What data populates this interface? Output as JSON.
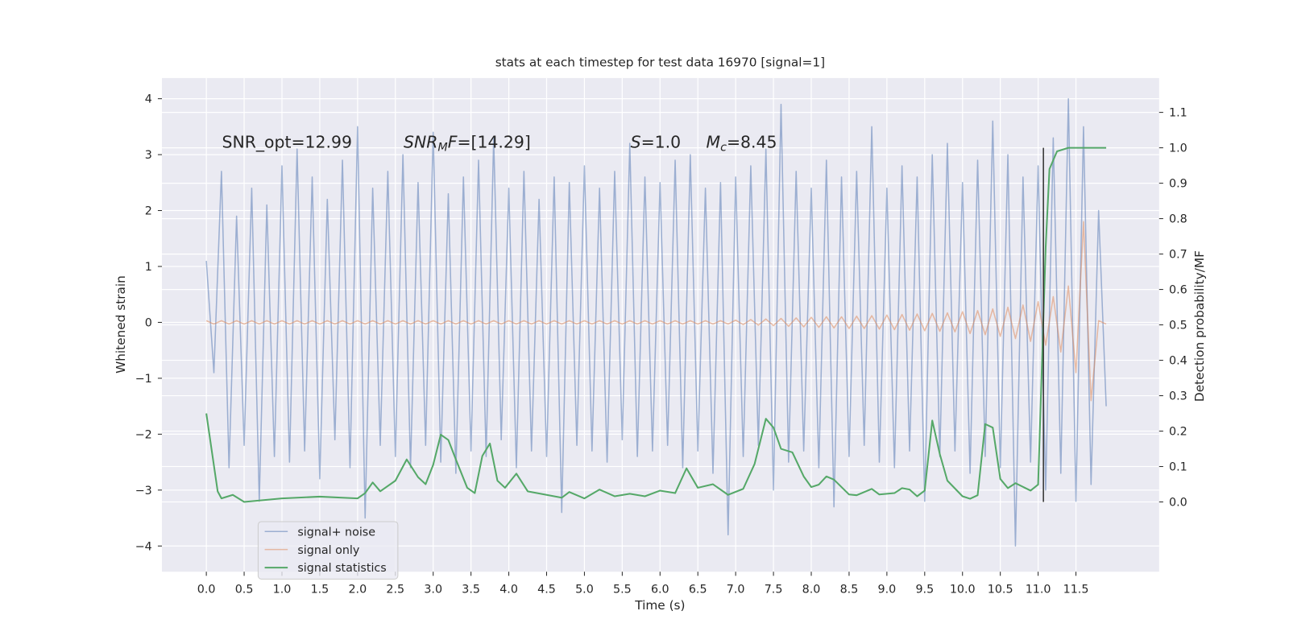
{
  "chart_data": {
    "type": "line",
    "title": "stats at each timestep for test data 16970 [signal=1]",
    "xlabel": "Time (s)",
    "ylabel": "Whitened strain",
    "y2label": "Detection probability/MF",
    "xlim": [
      -0.587,
      12.6
    ],
    "ylim": [
      -4.46,
      4.37
    ],
    "y2lim": [
      -0.197,
      1.197
    ],
    "xticks": [
      {
        "value": 0,
        "label": "0.0"
      },
      {
        "value": 0.5,
        "label": "0.5"
      },
      {
        "value": 1,
        "label": "1.0"
      },
      {
        "value": 1.5,
        "label": "1.5"
      },
      {
        "value": 2,
        "label": "2.0"
      },
      {
        "value": 2.5,
        "label": "2.5"
      },
      {
        "value": 3,
        "label": "3.0"
      },
      {
        "value": 3.5,
        "label": "3.5"
      },
      {
        "value": 4,
        "label": "4.0"
      },
      {
        "value": 4.5,
        "label": "4.5"
      },
      {
        "value": 5,
        "label": "5.0"
      },
      {
        "value": 5.5,
        "label": "5.5"
      },
      {
        "value": 6,
        "label": "6.0"
      },
      {
        "value": 6.5,
        "label": "6.5"
      },
      {
        "value": 7,
        "label": "7.0"
      },
      {
        "value": 7.5,
        "label": "7.5"
      },
      {
        "value": 8,
        "label": "8.0"
      },
      {
        "value": 8.5,
        "label": "8.5"
      },
      {
        "value": 9,
        "label": "9.0"
      },
      {
        "value": 9.5,
        "label": "9.5"
      },
      {
        "value": 10,
        "label": "10.0"
      },
      {
        "value": 10.5,
        "label": "10.5"
      },
      {
        "value": 11,
        "label": "11.0"
      },
      {
        "value": 11.5,
        "label": "11.5"
      }
    ],
    "yticks": [
      {
        "value": -4,
        "label": "−4"
      },
      {
        "value": -3,
        "label": "−3"
      },
      {
        "value": -2,
        "label": "−2"
      },
      {
        "value": -1,
        "label": "−1"
      },
      0,
      1,
      2,
      3,
      4
    ],
    "y2ticks": [
      {
        "value": 0,
        "label": "0.0"
      },
      {
        "value": 0.1,
        "label": "0.1"
      },
      {
        "value": 0.2,
        "label": "0.2"
      },
      {
        "value": 0.3,
        "label": "0.3"
      },
      {
        "value": 0.4,
        "label": "0.4"
      },
      {
        "value": 0.5,
        "label": "0.5"
      },
      {
        "value": 0.6,
        "label": "0.6"
      },
      {
        "value": 0.7,
        "label": "0.7"
      },
      {
        "value": 0.8,
        "label": "0.8"
      },
      {
        "value": 0.9,
        "label": "0.9"
      },
      {
        "value": 1,
        "label": "1.0"
      },
      {
        "value": 1.1,
        "label": "1.1"
      }
    ],
    "grid": true,
    "legend": "lower left",
    "series": [
      {
        "name": "signal+ noise",
        "color": "#4c72b0",
        "alpha": 0.5,
        "x": [
          0,
          0.1,
          0.2,
          0.3,
          0.4,
          0.5,
          0.6,
          0.7,
          0.8,
          0.9,
          1,
          1.1,
          1.2,
          1.3,
          1.4,
          1.5,
          1.6,
          1.7,
          1.8,
          1.9,
          2,
          2.1,
          2.2,
          2.3,
          2.4,
          2.5,
          2.6,
          2.7,
          2.8,
          2.9,
          3,
          3.1,
          3.2,
          3.3,
          3.4,
          3.5,
          3.6,
          3.7,
          3.8,
          3.9,
          4,
          4.1,
          4.2,
          4.3,
          4.4,
          4.5,
          4.6,
          4.7,
          4.8,
          4.9,
          5,
          5.1,
          5.2,
          5.3,
          5.4,
          5.5,
          5.6,
          5.7,
          5.8,
          5.9,
          6,
          6.1,
          6.2,
          6.3,
          6.4,
          6.5,
          6.6,
          6.7,
          6.8,
          6.9,
          7,
          7.1,
          7.2,
          7.3,
          7.4,
          7.5,
          7.6,
          7.7,
          7.8,
          7.9,
          8,
          8.1,
          8.2,
          8.3,
          8.4,
          8.5,
          8.6,
          8.7,
          8.8,
          8.9,
          9,
          9.1,
          9.2,
          9.3,
          9.4,
          9.5,
          9.6,
          9.7,
          9.8,
          9.9,
          10,
          10.1,
          10.2,
          10.3,
          10.4,
          10.5,
          10.6,
          10.7,
          10.8,
          10.9,
          11,
          11.1,
          11.2,
          11.3,
          11.4,
          11.5,
          11.6,
          11.7,
          11.8,
          11.9
        ],
        "values": [
          1.1,
          -0.9,
          2.7,
          -2.6,
          1.9,
          -2.2,
          2.4,
          -3.2,
          2.1,
          -2.4,
          2.8,
          -2.5,
          3.1,
          -2.3,
          2.6,
          -2.8,
          2.2,
          -2.1,
          2.9,
          -2.6,
          3.5,
          -3.5,
          2.4,
          -2.2,
          2.7,
          -2.4,
          3.0,
          -2.6,
          2.5,
          -2.2,
          3.4,
          -2.5,
          2.3,
          -2.7,
          2.6,
          -2.3,
          2.9,
          -2.4,
          3.3,
          -2.1,
          2.4,
          -2.6,
          2.7,
          -2.3,
          2.2,
          -2.4,
          2.6,
          -3.4,
          2.5,
          -2.2,
          2.8,
          -2.3,
          2.4,
          -2.5,
          2.7,
          -2.1,
          3.2,
          -2.4,
          2.6,
          -2.3,
          2.5,
          -2.2,
          2.9,
          -2.6,
          3.0,
          -2.3,
          2.4,
          -2.7,
          2.5,
          -3.8,
          2.6,
          -2.4,
          2.8,
          -2.2,
          3.1,
          -3.0,
          3.9,
          -2.5,
          2.7,
          -2.3,
          2.4,
          -2.6,
          2.9,
          -3.3,
          2.6,
          -2.4,
          2.7,
          -2.2,
          3.5,
          -2.5,
          2.4,
          -2.6,
          2.8,
          -2.3,
          2.6,
          -3.2,
          3.0,
          -2.4,
          3.2,
          -2.3,
          2.5,
          -2.7,
          2.9,
          -2.4,
          3.6,
          -2.6,
          3.0,
          -4.0,
          2.6,
          -2.5,
          2.8,
          -3.0,
          3.3,
          -2.7,
          4.0,
          -3.2,
          3.5,
          -2.9,
          2.0,
          -1.5
        ]
      },
      {
        "name": "signal only",
        "color": "#dd8452",
        "alpha": 0.5,
        "x": [
          0,
          0.1,
          0.2,
          0.3,
          0.4,
          0.5,
          0.6,
          0.7,
          0.8,
          0.9,
          1,
          1.1,
          1.2,
          1.3,
          1.4,
          1.5,
          1.6,
          1.7,
          1.8,
          1.9,
          2,
          2.1,
          2.2,
          2.3,
          2.4,
          2.5,
          2.6,
          2.7,
          2.8,
          2.9,
          3,
          3.1,
          3.2,
          3.3,
          3.4,
          3.5,
          3.6,
          3.7,
          3.8,
          3.9,
          4,
          4.1,
          4.2,
          4.3,
          4.4,
          4.5,
          4.6,
          4.7,
          4.8,
          4.9,
          5,
          5.1,
          5.2,
          5.3,
          5.4,
          5.5,
          5.6,
          5.7,
          5.8,
          5.9,
          6,
          6.1,
          6.2,
          6.3,
          6.4,
          6.5,
          6.6,
          6.7,
          6.8,
          6.9,
          7,
          7.1,
          7.2,
          7.3,
          7.4,
          7.5,
          7.6,
          7.7,
          7.8,
          7.9,
          8,
          8.1,
          8.2,
          8.3,
          8.4,
          8.5,
          8.6,
          8.7,
          8.8,
          8.9,
          9,
          9.1,
          9.2,
          9.3,
          9.4,
          9.5,
          9.6,
          9.7,
          9.8,
          9.9,
          10,
          10.1,
          10.2,
          10.3,
          10.4,
          10.5,
          10.6,
          10.7,
          10.8,
          10.9,
          11,
          11.1,
          11.2,
          11.3,
          11.4,
          11.5,
          11.6,
          11.7,
          11.8,
          11.9
        ],
        "values": [
          0.03,
          -0.03,
          0.03,
          -0.03,
          0.03,
          -0.03,
          0.03,
          -0.03,
          0.03,
          -0.03,
          0.03,
          -0.03,
          0.03,
          -0.03,
          0.03,
          -0.03,
          0.03,
          -0.03,
          0.03,
          -0.03,
          0.03,
          -0.03,
          0.03,
          -0.03,
          0.03,
          -0.03,
          0.03,
          -0.03,
          0.03,
          -0.03,
          0.03,
          -0.03,
          0.03,
          -0.03,
          0.03,
          -0.03,
          0.03,
          -0.03,
          0.03,
          -0.03,
          0.03,
          -0.03,
          0.03,
          -0.03,
          0.03,
          -0.03,
          0.03,
          -0.03,
          0.03,
          -0.03,
          0.03,
          -0.03,
          0.03,
          -0.03,
          0.03,
          -0.03,
          0.03,
          -0.03,
          0.03,
          -0.03,
          0.03,
          -0.03,
          0.03,
          -0.03,
          0.03,
          -0.03,
          0.03,
          -0.03,
          0.03,
          -0.03,
          0.04,
          -0.04,
          0.05,
          -0.05,
          0.06,
          -0.06,
          0.07,
          -0.07,
          0.08,
          -0.08,
          0.09,
          -0.09,
          0.1,
          -0.1,
          0.1,
          -0.11,
          0.11,
          -0.11,
          0.12,
          -0.12,
          0.13,
          -0.13,
          0.14,
          -0.14,
          0.15,
          -0.15,
          0.16,
          -0.16,
          0.17,
          -0.17,
          0.19,
          -0.2,
          0.21,
          -0.22,
          0.24,
          -0.25,
          0.27,
          -0.29,
          0.31,
          -0.34,
          0.37,
          -0.41,
          0.46,
          -0.53,
          0.65,
          -0.9,
          1.8,
          -1.4,
          0.03,
          -0.03
        ]
      },
      {
        "name": "signal statistics",
        "color": "#55a868",
        "axis": "y2",
        "x": [
          0,
          0.15,
          0.2,
          0.35,
          0.5,
          1,
          1.5,
          2,
          2.1,
          2.2,
          2.3,
          2.5,
          2.65,
          2.8,
          2.9,
          3,
          3.1,
          3.2,
          3.3,
          3.45,
          3.55,
          3.65,
          3.75,
          3.85,
          3.95,
          4.1,
          4.25,
          4.5,
          4.7,
          4.8,
          5,
          5.2,
          5.4,
          5.6,
          5.8,
          6,
          6.2,
          6.35,
          6.5,
          6.7,
          6.9,
          7.1,
          7.25,
          7.4,
          7.5,
          7.6,
          7.75,
          7.9,
          8,
          8.1,
          8.2,
          8.3,
          8.5,
          8.6,
          8.8,
          8.9,
          9.1,
          9.2,
          9.3,
          9.4,
          9.5,
          9.6,
          9.7,
          9.8,
          10,
          10.1,
          10.2,
          10.3,
          10.4,
          10.5,
          10.6,
          10.7,
          10.9,
          11,
          11.1,
          11.15,
          11.25,
          11.4,
          11.9
        ],
        "values": [
          0.25,
          0.03,
          0.01,
          0.02,
          0.0,
          0.01,
          0.015,
          0.01,
          0.025,
          0.055,
          0.03,
          0.06,
          0.12,
          0.07,
          0.05,
          0.105,
          0.19,
          0.175,
          0.12,
          0.04,
          0.025,
          0.13,
          0.165,
          0.06,
          0.04,
          0.08,
          0.03,
          0.02,
          0.012,
          0.028,
          0.01,
          0.035,
          0.016,
          0.023,
          0.016,
          0.032,
          0.025,
          0.095,
          0.04,
          0.05,
          0.02,
          0.037,
          0.107,
          0.235,
          0.21,
          0.15,
          0.14,
          0.072,
          0.042,
          0.049,
          0.072,
          0.063,
          0.021,
          0.019,
          0.037,
          0.021,
          0.025,
          0.039,
          0.035,
          0.016,
          0.032,
          0.23,
          0.135,
          0.06,
          0.016,
          0.009,
          0.019,
          0.22,
          0.21,
          0.065,
          0.039,
          0.053,
          0.032,
          0.049,
          0.72,
          0.94,
          0.99,
          1.0,
          1.0
        ]
      }
    ],
    "marker": {
      "x": 11.07,
      "y2": [
        0.0,
        1.0
      ],
      "color": "#333333"
    },
    "annotations": [
      {
        "parts": [
          {
            "text": "SNR_opt=12.99"
          }
        ]
      },
      {
        "parts": [
          {
            "text": "SNR",
            "style": "italic"
          },
          {
            "text": "M",
            "style": "sub"
          },
          {
            "text": "F",
            "style": "italic"
          },
          {
            "text": "=[14.29]"
          }
        ]
      },
      {
        "parts": [
          {
            "text": "S",
            "style": "italic"
          },
          {
            "text": "=1.0"
          }
        ]
      },
      {
        "parts": [
          {
            "text": "M",
            "style": "italic"
          },
          {
            "text": "c",
            "style": "sub"
          },
          {
            "text": "=8.45"
          }
        ]
      }
    ]
  }
}
